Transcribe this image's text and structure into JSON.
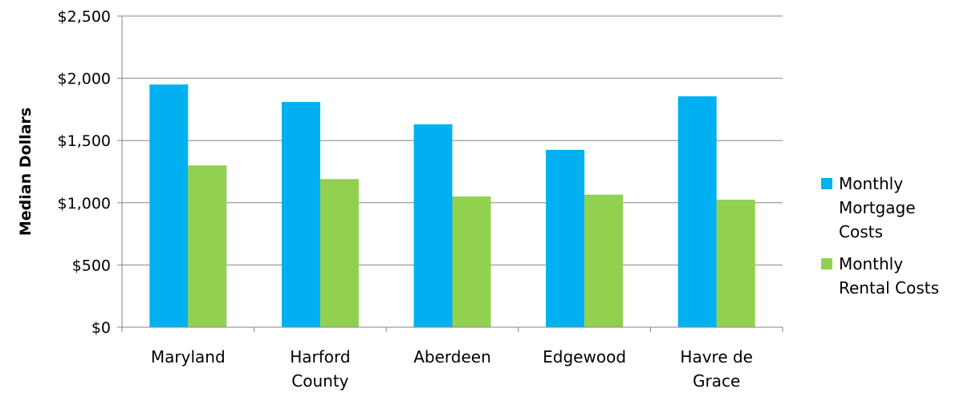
{
  "chart_data": {
    "type": "bar",
    "title": "",
    "xlabel": "",
    "ylabel": "Median Dollars",
    "ylim": [
      0,
      2500
    ],
    "yticks": [
      0,
      500,
      1000,
      1500,
      2000,
      2500
    ],
    "ytick_labels": [
      "$0",
      "$500",
      "$1,000",
      "$1,500",
      "$2,000",
      "$2,500"
    ],
    "grid": true,
    "legend_position": "right",
    "categories": [
      [
        "Maryland"
      ],
      [
        "Harford",
        "County"
      ],
      [
        "Aberdeen"
      ],
      [
        "Edgewood"
      ],
      [
        "Havre de",
        "Grace"
      ]
    ],
    "series": [
      {
        "name": [
          "Monthly",
          "Mortgage",
          "Costs"
        ],
        "color": "#00B0F0",
        "values": [
          1950,
          1810,
          1630,
          1425,
          1855
        ]
      },
      {
        "name": [
          "Monthly",
          "Rental Costs"
        ],
        "color": "#92D050",
        "values": [
          1300,
          1190,
          1050,
          1065,
          1025
        ]
      }
    ]
  }
}
